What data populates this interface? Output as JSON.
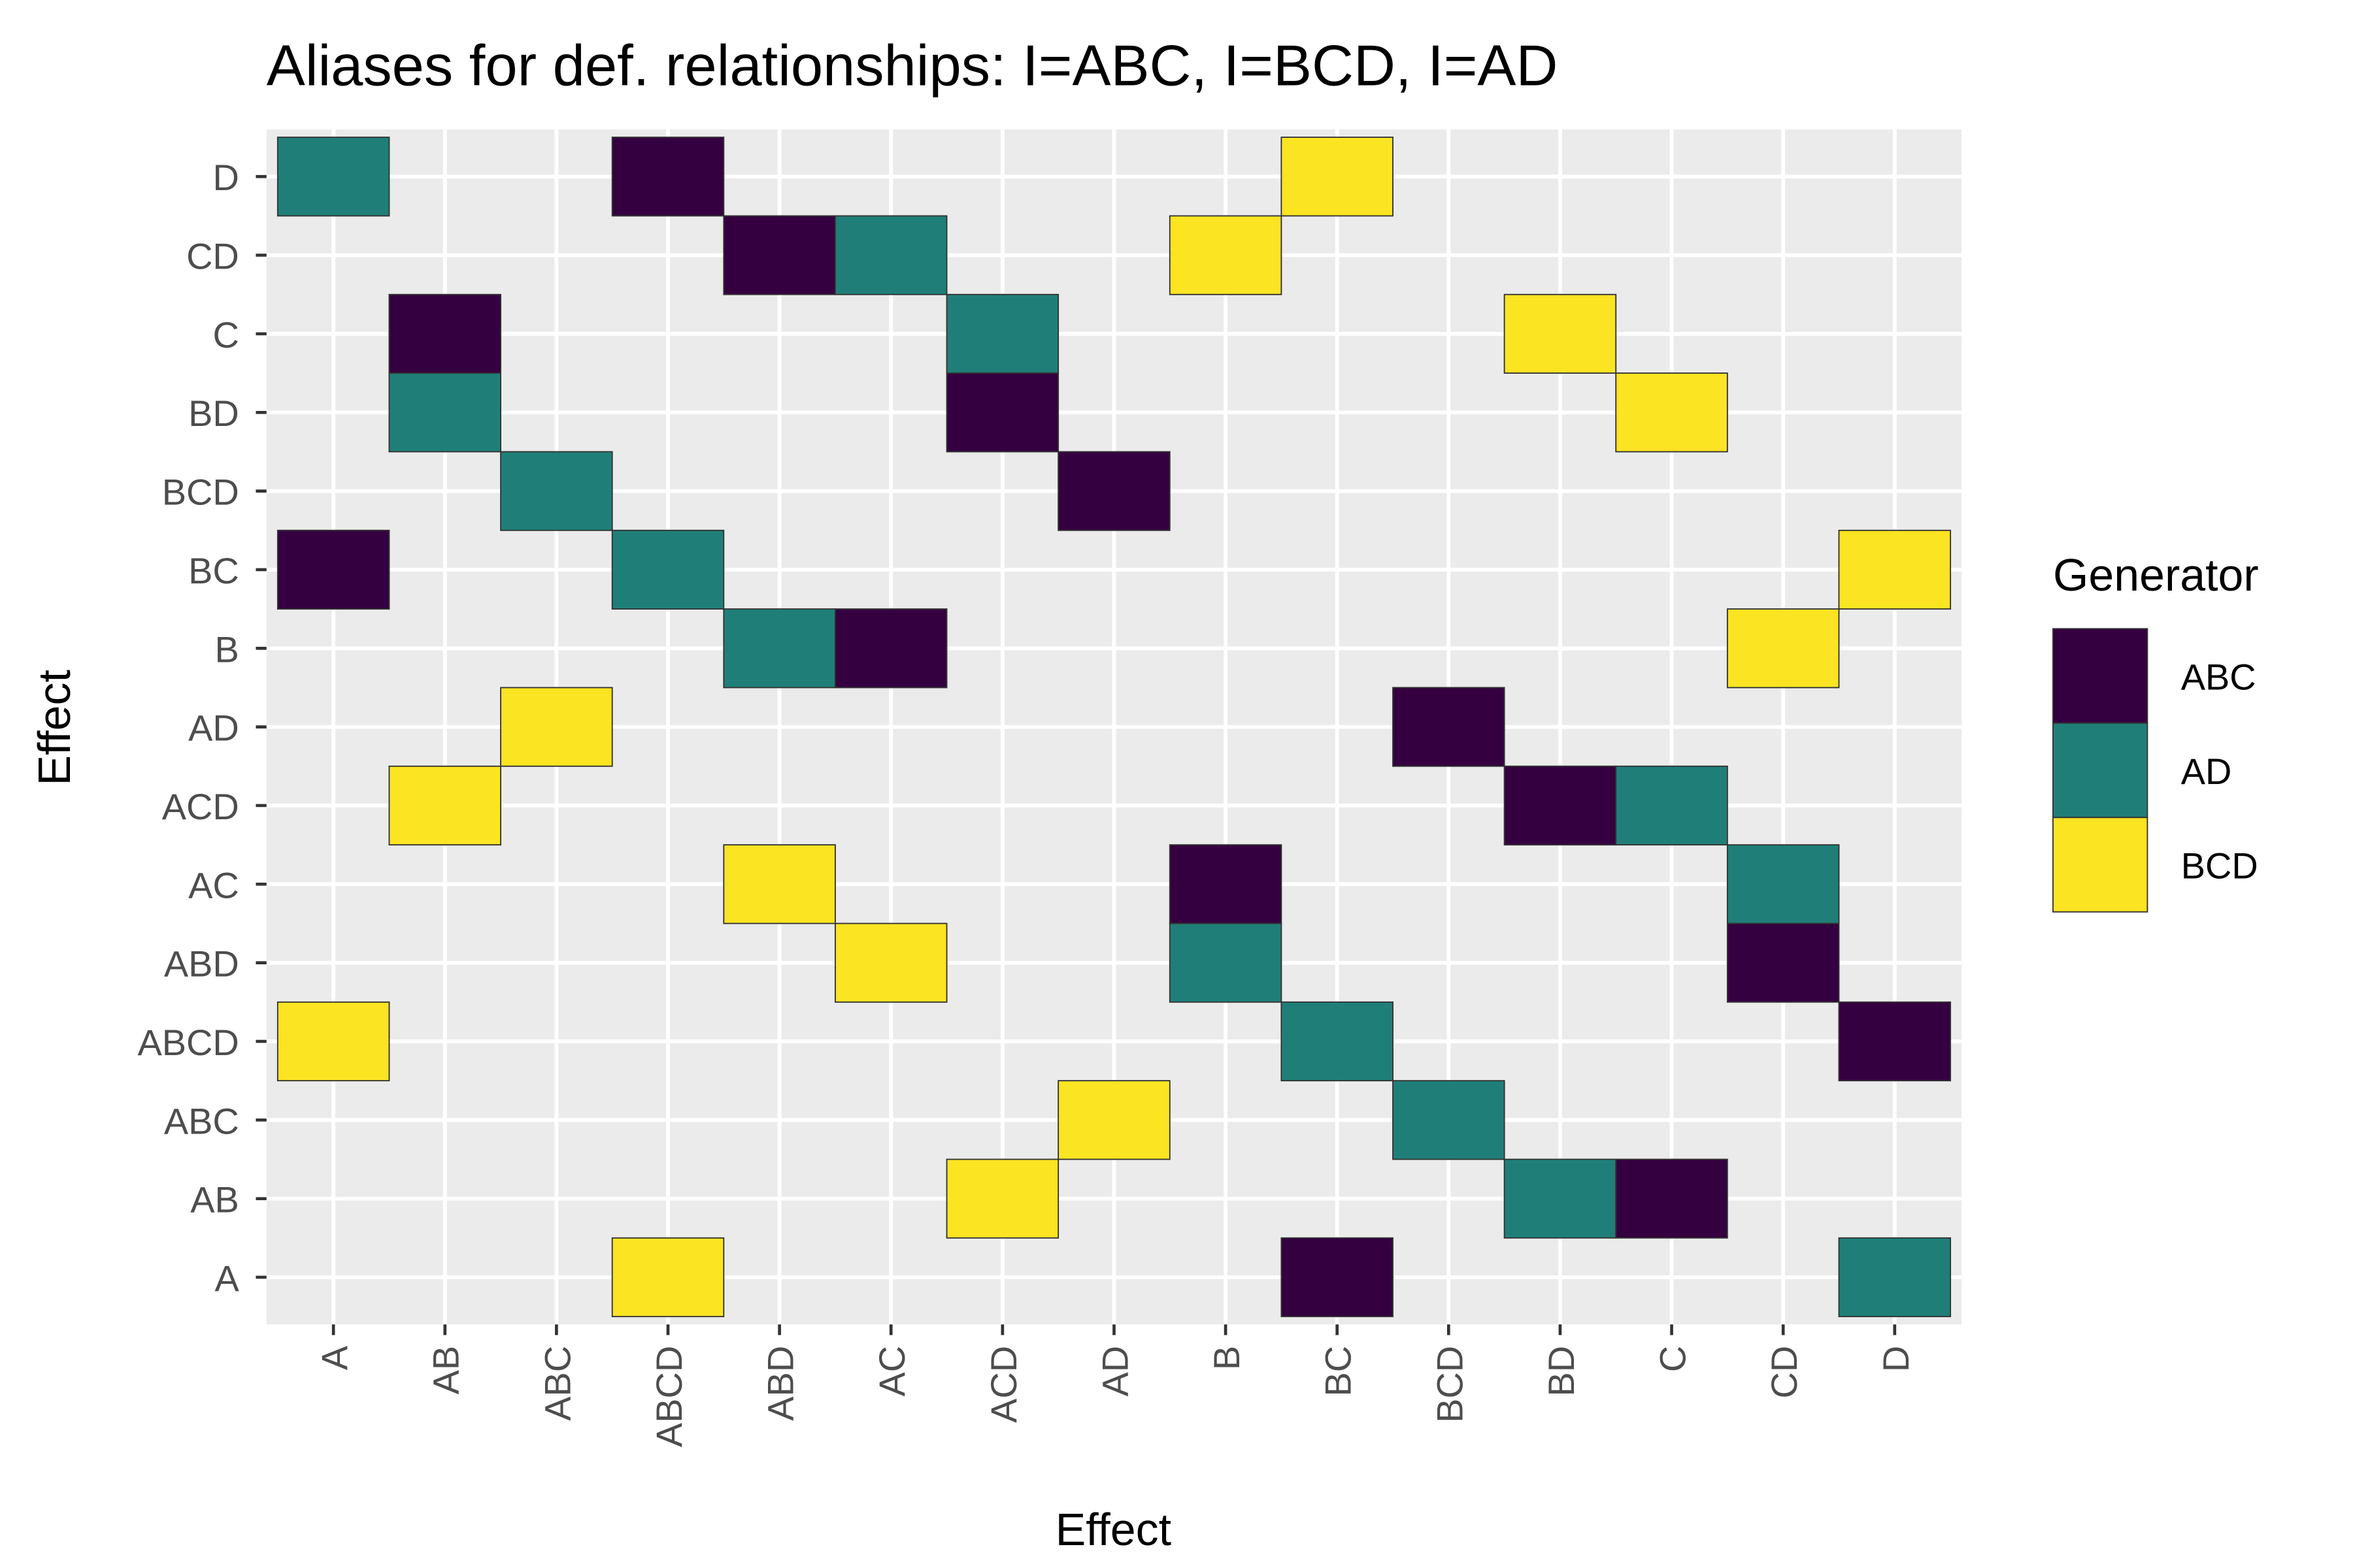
{
  "chart_data": {
    "type": "heatmap",
    "title": "Aliases for def. relationships: I=ABC, I=BCD, I=AD",
    "xlabel": "Effect",
    "ylabel": "Effect",
    "x_categories": [
      "A",
      "AB",
      "ABC",
      "ABCD",
      "ABD",
      "AC",
      "ACD",
      "AD",
      "B",
      "BC",
      "BCD",
      "BD",
      "C",
      "CD",
      "D"
    ],
    "y_categories": [
      "A",
      "AB",
      "ABC",
      "ABCD",
      "ABD",
      "AC",
      "ACD",
      "AD",
      "B",
      "BC",
      "BCD",
      "BD",
      "C",
      "CD",
      "D"
    ],
    "legend": {
      "title": "Generator",
      "position": "right",
      "entries": [
        {
          "label": "ABC",
          "color": "#350040"
        },
        {
          "label": "AD",
          "color": "#1F7F78"
        },
        {
          "label": "BCD",
          "color": "#FBE422"
        }
      ]
    },
    "grid": true,
    "cells": [
      {
        "y": "D",
        "x": "A",
        "g": "AD"
      },
      {
        "y": "D",
        "x": "ABCD",
        "g": "ABC"
      },
      {
        "y": "D",
        "x": "BC",
        "g": "BCD"
      },
      {
        "y": "CD",
        "x": "ABD",
        "g": "ABC"
      },
      {
        "y": "CD",
        "x": "AC",
        "g": "AD"
      },
      {
        "y": "CD",
        "x": "B",
        "g": "BCD"
      },
      {
        "y": "C",
        "x": "AB",
        "g": "ABC"
      },
      {
        "y": "C",
        "x": "ACD",
        "g": "AD"
      },
      {
        "y": "C",
        "x": "BD",
        "g": "BCD"
      },
      {
        "y": "BD",
        "x": "AB",
        "g": "AD"
      },
      {
        "y": "BD",
        "x": "ACD",
        "g": "ABC"
      },
      {
        "y": "BD",
        "x": "C",
        "g": "BCD"
      },
      {
        "y": "BCD",
        "x": "ABC",
        "g": "AD"
      },
      {
        "y": "BCD",
        "x": "AD",
        "g": "ABC"
      },
      {
        "y": "BC",
        "x": "A",
        "g": "ABC"
      },
      {
        "y": "BC",
        "x": "ABCD",
        "g": "AD"
      },
      {
        "y": "BC",
        "x": "D",
        "g": "BCD"
      },
      {
        "y": "B",
        "x": "ABD",
        "g": "AD"
      },
      {
        "y": "B",
        "x": "AC",
        "g": "ABC"
      },
      {
        "y": "B",
        "x": "CD",
        "g": "BCD"
      },
      {
        "y": "AD",
        "x": "ABC",
        "g": "BCD"
      },
      {
        "y": "AD",
        "x": "BCD",
        "g": "ABC"
      },
      {
        "y": "ACD",
        "x": "AB",
        "g": "BCD"
      },
      {
        "y": "ACD",
        "x": "BD",
        "g": "ABC"
      },
      {
        "y": "ACD",
        "x": "C",
        "g": "AD"
      },
      {
        "y": "AC",
        "x": "ABD",
        "g": "BCD"
      },
      {
        "y": "AC",
        "x": "B",
        "g": "ABC"
      },
      {
        "y": "AC",
        "x": "CD",
        "g": "AD"
      },
      {
        "y": "ABD",
        "x": "AC",
        "g": "BCD"
      },
      {
        "y": "ABD",
        "x": "B",
        "g": "AD"
      },
      {
        "y": "ABD",
        "x": "CD",
        "g": "ABC"
      },
      {
        "y": "ABCD",
        "x": "A",
        "g": "BCD"
      },
      {
        "y": "ABCD",
        "x": "BC",
        "g": "AD"
      },
      {
        "y": "ABCD",
        "x": "D",
        "g": "ABC"
      },
      {
        "y": "ABC",
        "x": "AD",
        "g": "BCD"
      },
      {
        "y": "ABC",
        "x": "BCD",
        "g": "AD"
      },
      {
        "y": "AB",
        "x": "ACD",
        "g": "BCD"
      },
      {
        "y": "AB",
        "x": "BD",
        "g": "AD"
      },
      {
        "y": "AB",
        "x": "C",
        "g": "ABC"
      },
      {
        "y": "A",
        "x": "ABCD",
        "g": "BCD"
      },
      {
        "y": "A",
        "x": "BC",
        "g": "ABC"
      },
      {
        "y": "A",
        "x": "D",
        "g": "AD"
      }
    ]
  }
}
